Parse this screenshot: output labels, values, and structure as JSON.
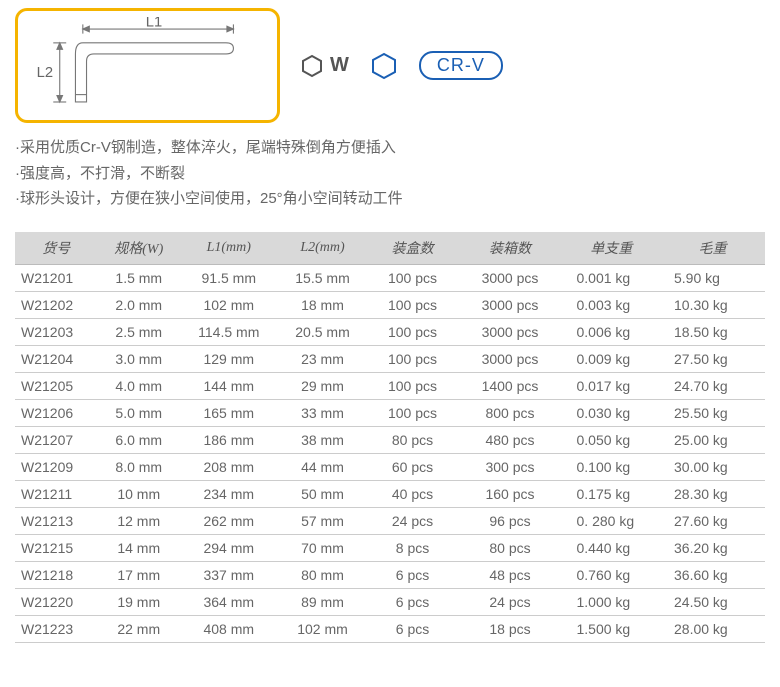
{
  "diagram": {
    "label_l1": "L1",
    "label_l2": "L2",
    "hex_label": "W",
    "crv_text": "CR-V",
    "stroke_color": "#777777",
    "box_border": "#f5b400",
    "accent_blue": "#1a5fb4"
  },
  "desc": {
    "line1": "·采用优质Cr-V钢制造，整体淬火，尾端特殊倒角方便插入",
    "line2": "·强度高，不打滑，不断裂",
    "line3": "·球形头设计，方便在狭小空间使用，25°角小空间转动工件"
  },
  "table": {
    "headers": [
      "货号",
      "规格(W)",
      "L1(mm)",
      "L2(mm)",
      "装盒数",
      "装箱数",
      "单支重",
      "毛重"
    ],
    "col_widths": [
      "11%",
      "11%",
      "13%",
      "12%",
      "12%",
      "14%",
      "13%",
      "14%"
    ],
    "rows": [
      [
        "W21201",
        "1.5 mm",
        "91.5 mm",
        "15.5 mm",
        "100  pcs",
        "3000 pcs",
        "0.001 kg",
        "5.90 kg"
      ],
      [
        "W21202",
        "2.0 mm",
        "102 mm",
        "18 mm",
        "100  pcs",
        "3000 pcs",
        "0.003 kg",
        "10.30 kg"
      ],
      [
        "W21203",
        "2.5 mm",
        "114.5 mm",
        "20.5 mm",
        "100  pcs",
        "3000 pcs",
        "0.006 kg",
        "18.50 kg"
      ],
      [
        "W21204",
        "3.0 mm",
        "129 mm",
        "23 mm",
        "100  pcs",
        "3000 pcs",
        "0.009 kg",
        "27.50 kg"
      ],
      [
        "W21205",
        "4.0 mm",
        "144 mm",
        "29 mm",
        "100  pcs",
        "1400 pcs",
        "0.017 kg",
        "24.70 kg"
      ],
      [
        "W21206",
        "5.0 mm",
        "165 mm",
        "33 mm",
        "100  pcs",
        "800 pcs",
        "0.030 kg",
        "25.50 kg"
      ],
      [
        "W21207",
        "6.0 mm",
        "186 mm",
        "38 mm",
        "80  pcs",
        "480 pcs",
        "0.050 kg",
        "25.00 kg"
      ],
      [
        "W21209",
        "8.0 mm",
        "208 mm",
        "44 mm",
        "60  pcs",
        "300 pcs",
        "0.100 kg",
        "30.00 kg"
      ],
      [
        "W21211",
        "10 mm",
        "234 mm",
        "50 mm",
        "40  pcs",
        "160 pcs",
        "0.175 kg",
        "28.30 kg"
      ],
      [
        "W21213",
        "12 mm",
        "262 mm",
        "57 mm",
        "24  pcs",
        "96 pcs",
        "0. 280 kg",
        "27.60 kg"
      ],
      [
        "W21215",
        "14 mm",
        "294 mm",
        "70 mm",
        "8  pcs",
        "80 pcs",
        "0.440 kg",
        "36.20 kg"
      ],
      [
        "W21218",
        "17 mm",
        "337 mm",
        "80 mm",
        "6  pcs",
        "48 pcs",
        "0.760 kg",
        "36.60 kg"
      ],
      [
        "W21220",
        "19 mm",
        "364 mm",
        "89 mm",
        "6  pcs",
        "24 pcs",
        "1.000 kg",
        "24.50 kg"
      ],
      [
        "W21223",
        "22 mm",
        "408 mm",
        "102 mm",
        "6  pcs",
        "18 pcs",
        "1.500 kg",
        "28.00 kg"
      ]
    ]
  }
}
